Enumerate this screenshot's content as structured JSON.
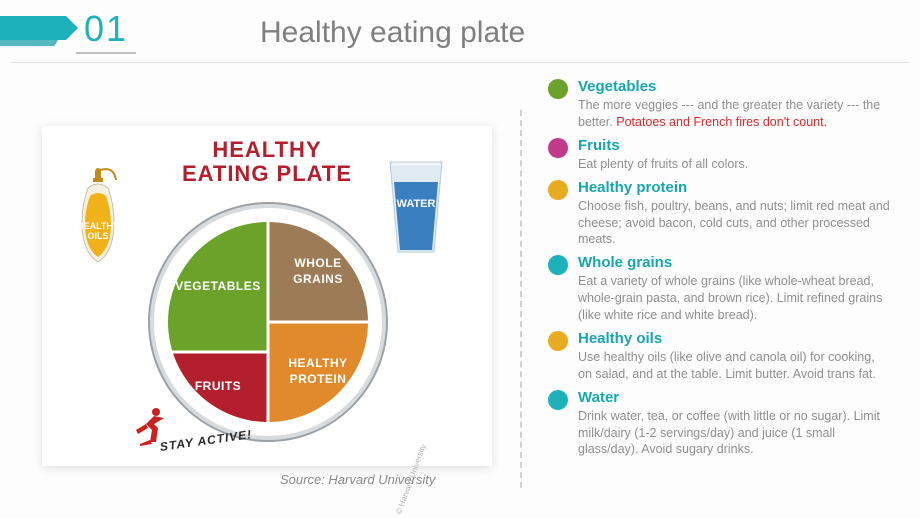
{
  "slide": {
    "number": "01",
    "title": "Healthy eating plate",
    "accent_color": "#1db2bb",
    "title_color": "#7f7f7f",
    "background": "#fdfdfd"
  },
  "figure": {
    "title_line1": "HEALTHY",
    "title_line2": "EATING PLATE",
    "title_color": "#b31f2c",
    "source_label": "Source: Harvard University",
    "attribution": "© Harvard University",
    "stay_active": "STAY ACTIVE!",
    "water_label": "WATER",
    "oils_label_l1": "HEALTHY",
    "oils_label_l2": "OILS",
    "plate": {
      "rim_color": "#9ba0a5",
      "segments": {
        "vegetables": {
          "label": "VEGETABLES",
          "color": "#6aa22a"
        },
        "whole_grains": {
          "label": "WHOLE GRAINS",
          "color": "#9c7b56"
        },
        "healthy_protein": {
          "label": "HEALTHY PROTEIN",
          "color": "#e18a2b"
        },
        "fruits": {
          "label": "FRUITS",
          "color": "#b31f2c"
        }
      }
    },
    "glass_color": "#3a7fbf",
    "oil_color": "#f0b11b",
    "runner_color": "#cc1f1f"
  },
  "legend": {
    "heading_color": "#16a6ae",
    "text_color": "#8f8f8f",
    "warn_color": "#e02828",
    "items": [
      {
        "dot": "#6aa22a",
        "title": "Vegetables",
        "desc": "The more veggies --- and the greater the variety --- the better. ",
        "warn": "Potatoes and French fires don't count."
      },
      {
        "dot": "#c13a8b",
        "title": "Fruits",
        "desc": "Eat plenty of fruits of all colors.",
        "warn": ""
      },
      {
        "dot": "#e8ab22",
        "title": "Healthy protein",
        "desc": "Choose fish, poultry, beans, and nuts; limit red meat and cheese; avoid bacon, cold cuts, and other processed meats.",
        "warn": ""
      },
      {
        "dot": "#1db2bb",
        "title": "Whole grains",
        "desc": "Eat a variety of whole grains (like whole-wheat bread, whole-grain pasta, and brown rice). Limit refined grains (like white rice and white bread).",
        "warn": ""
      },
      {
        "dot": "#e8ab22",
        "title": "Healthy oils",
        "desc": "Use healthy oils (like olive and canola oil) for cooking, on salad, and at the table. Limit butter. Avoid trans fat.",
        "warn": ""
      },
      {
        "dot": "#1db2bb",
        "title": "Water",
        "desc": "Drink water, tea, or coffee (with little or no sugar). Limit milk/dairy (1-2 servings/day) and juice (1 small glass/day). Avoid sugary drinks.",
        "warn": ""
      }
    ]
  }
}
